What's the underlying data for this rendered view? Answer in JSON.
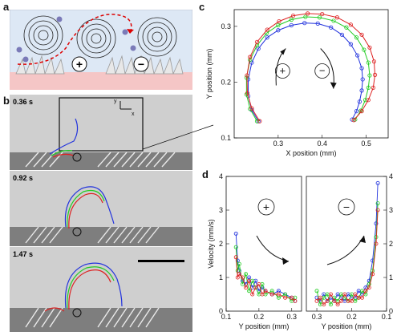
{
  "panels": {
    "a": {
      "label": "a",
      "plus": "+",
      "minus": "−"
    },
    "b": {
      "label": "b",
      "times": [
        "0.36 s",
        "0.92 s",
        "1.47 s"
      ],
      "axis_y": "y",
      "axis_x": "x"
    },
    "c": {
      "label": "c"
    },
    "d": {
      "label": "d"
    }
  },
  "chart_data": [
    {
      "type": "scatter",
      "xlabel": "X position (mm)",
      "ylabel": "Y position (mm)",
      "xlim": [
        0.2,
        0.55
      ],
      "ylim": [
        0.1,
        0.33
      ],
      "xticks": [
        "0.3",
        "0.4",
        "0.5"
      ],
      "yticks": [
        "0.1",
        "0.2",
        "0.3"
      ],
      "annotations": [
        "+",
        "−"
      ],
      "series": [
        {
          "color": "#2233dd",
          "x": [
            0.255,
            0.24,
            0.232,
            0.232,
            0.24,
            0.255,
            0.275,
            0.3,
            0.33,
            0.36,
            0.39,
            0.42,
            0.445,
            0.465,
            0.48,
            0.49,
            0.492,
            0.49,
            0.485,
            0.478,
            0.468
          ],
          "y": [
            0.13,
            0.15,
            0.175,
            0.205,
            0.235,
            0.26,
            0.28,
            0.293,
            0.302,
            0.306,
            0.305,
            0.298,
            0.285,
            0.268,
            0.248,
            0.225,
            0.205,
            0.185,
            0.165,
            0.148,
            0.133
          ]
        },
        {
          "color": "#22cc22",
          "x": [
            0.252,
            0.236,
            0.228,
            0.228,
            0.236,
            0.252,
            0.274,
            0.3,
            0.33,
            0.362,
            0.394,
            0.426,
            0.455,
            0.478,
            0.495,
            0.505,
            0.508,
            0.505,
            0.498,
            0.488,
            0.475
          ],
          "y": [
            0.13,
            0.152,
            0.178,
            0.208,
            0.24,
            0.266,
            0.288,
            0.302,
            0.312,
            0.317,
            0.316,
            0.31,
            0.298,
            0.28,
            0.258,
            0.235,
            0.212,
            0.19,
            0.168,
            0.149,
            0.133
          ]
        },
        {
          "color": "#dd2222",
          "x": [
            0.258,
            0.24,
            0.23,
            0.229,
            0.236,
            0.252,
            0.275,
            0.302,
            0.334,
            0.367,
            0.4,
            0.434,
            0.465,
            0.49,
            0.508,
            0.518,
            0.52,
            0.516,
            0.505,
            0.49,
            0.472
          ],
          "y": [
            0.13,
            0.153,
            0.18,
            0.212,
            0.245,
            0.272,
            0.294,
            0.309,
            0.319,
            0.323,
            0.322,
            0.316,
            0.303,
            0.285,
            0.262,
            0.237,
            0.213,
            0.19,
            0.168,
            0.148,
            0.132
          ]
        }
      ]
    },
    {
      "type": "line",
      "ylabel": "Velocity (mm/s)",
      "xlabel": "Y position (mm)",
      "ylim": [
        0,
        4
      ],
      "xlim": [
        0.1,
        0.33
      ],
      "xticks": [
        "0.1",
        "0.2",
        "0.3"
      ],
      "yticks": [
        "0",
        "1",
        "2",
        "3",
        "4"
      ],
      "annotations": [
        "+"
      ],
      "series": [
        {
          "color": "#2233dd",
          "x": [
            0.13,
            0.135,
            0.14,
            0.15,
            0.16,
            0.17,
            0.18,
            0.19,
            0.2,
            0.21,
            0.22,
            0.24,
            0.26,
            0.28,
            0.3,
            0.31
          ],
          "y": [
            2.3,
            1.5,
            1.2,
            0.9,
            0.8,
            1.0,
            0.7,
            0.9,
            0.6,
            0.7,
            0.6,
            0.5,
            0.6,
            0.5,
            0.4,
            0.3
          ]
        },
        {
          "color": "#22cc22",
          "x": [
            0.13,
            0.135,
            0.14,
            0.15,
            0.16,
            0.17,
            0.18,
            0.19,
            0.2,
            0.21,
            0.22,
            0.24,
            0.26,
            0.28,
            0.3,
            0.31
          ],
          "y": [
            1.9,
            1.2,
            1.4,
            0.8,
            1.1,
            0.6,
            0.9,
            0.7,
            0.5,
            0.8,
            0.5,
            0.6,
            0.4,
            0.5,
            0.3,
            0.4
          ]
        },
        {
          "color": "#dd2222",
          "x": [
            0.13,
            0.135,
            0.14,
            0.15,
            0.16,
            0.17,
            0.18,
            0.19,
            0.2,
            0.21,
            0.22,
            0.24,
            0.26,
            0.28,
            0.3,
            0.31
          ],
          "y": [
            1.6,
            1.0,
            1.1,
            1.0,
            0.7,
            0.9,
            0.5,
            0.7,
            0.8,
            0.5,
            0.6,
            0.5,
            0.5,
            0.4,
            0.4,
            0.3
          ]
        }
      ]
    },
    {
      "type": "line",
      "xlabel": "Y position (mm)",
      "ylim": [
        0,
        4
      ],
      "xlim": [
        0.1,
        0.33
      ],
      "xticks": [
        "0.3",
        "0.2",
        "0.1"
      ],
      "yticks": [
        "0",
        "1",
        "2",
        "3",
        "4"
      ],
      "annotations": [
        "−"
      ],
      "series": [
        {
          "color": "#2233dd",
          "x": [
            0.3,
            0.29,
            0.28,
            0.27,
            0.26,
            0.25,
            0.24,
            0.23,
            0.22,
            0.21,
            0.2,
            0.19,
            0.18,
            0.17,
            0.16,
            0.15,
            0.14,
            0.13,
            0.125
          ],
          "y": [
            0.4,
            0.3,
            0.5,
            0.3,
            0.4,
            0.3,
            0.5,
            0.4,
            0.3,
            0.5,
            0.4,
            0.4,
            0.6,
            0.5,
            0.7,
            0.9,
            1.5,
            2.6,
            3.8
          ]
        },
        {
          "color": "#22cc22",
          "x": [
            0.3,
            0.29,
            0.28,
            0.27,
            0.26,
            0.25,
            0.24,
            0.23,
            0.22,
            0.21,
            0.2,
            0.19,
            0.18,
            0.17,
            0.16,
            0.15,
            0.14,
            0.13,
            0.125
          ],
          "y": [
            0.6,
            0.2,
            0.4,
            0.5,
            0.2,
            0.4,
            0.3,
            0.5,
            0.4,
            0.3,
            0.5,
            0.3,
            0.4,
            0.6,
            0.5,
            0.8,
            1.2,
            2.2,
            3.2
          ]
        },
        {
          "color": "#dd2222",
          "x": [
            0.3,
            0.29,
            0.28,
            0.27,
            0.26,
            0.25,
            0.24,
            0.23,
            0.22,
            0.21,
            0.2,
            0.19,
            0.18,
            0.17,
            0.16,
            0.15,
            0.14,
            0.13,
            0.125
          ],
          "y": [
            0.3,
            0.4,
            0.2,
            0.3,
            0.5,
            0.3,
            0.2,
            0.3,
            0.5,
            0.3,
            0.3,
            0.5,
            0.4,
            0.4,
            0.6,
            0.7,
            1.1,
            2.0,
            3.0
          ]
        }
      ]
    }
  ]
}
